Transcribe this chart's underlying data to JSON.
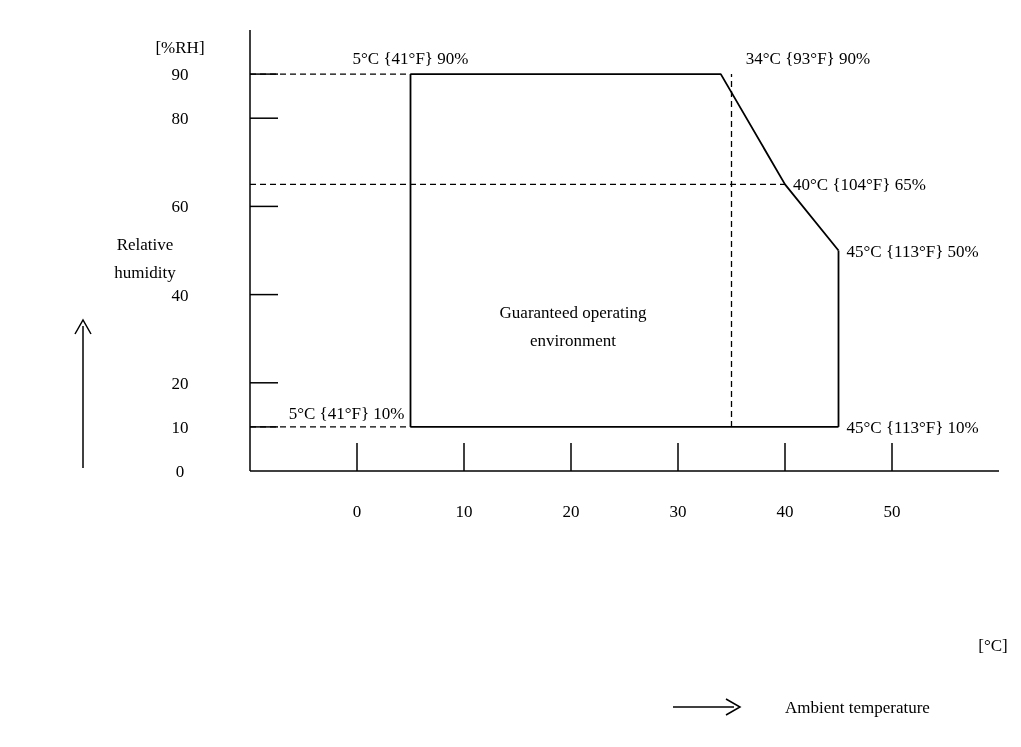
{
  "chart_data": {
    "type": "line",
    "ylabel": "Relative humidity",
    "xlim": [
      -10,
      60
    ],
    "xticks": [
      0,
      10,
      20,
      30,
      40,
      50
    ],
    "ylim": [
      0,
      100
    ],
    "yticks": [
      0,
      10,
      20,
      40,
      60,
      80,
      90
    ],
    "marker": "none",
    "line_style": "solid",
    "series": [
      {
        "color": "#000000",
        "x": [
          5,
          34,
          40,
          45
        ],
        "values": [
          90,
          90,
          65,
          50
        ]
      },
      {
        "color": "#000000",
        "x": [
          5,
          45
        ],
        "values": [
          10,
          10
        ]
      }
    ],
    "ref_lines": [
      {
        "axis": "x",
        "value": 5,
        "color": "#000000",
        "line_style": "solid"
      },
      {
        "axis": "x",
        "value": 45,
        "color": "#000000",
        "line_style": "solid"
      },
      {
        "axis": "y",
        "value": 90,
        "color": "#000000",
        "line_style": "dashed"
      },
      {
        "axis": "y",
        "value": 65,
        "color": "#000000",
        "line_style": "dashed"
      },
      {
        "axis": "y",
        "value": 10,
        "color": "#000000",
        "line_style": "dashed"
      },
      {
        "axis": "x",
        "value": 35,
        "color": "#000000",
        "line_style": "dashed"
      }
    ],
    "annotations": [
      "[%RH]",
      "[°C]",
      "Guaranteed operating environment",
      "Ambient temperature",
      {
        "text": "5°C {41°F} 90%",
        "x": 5,
        "y": 90
      },
      {
        "text": "34°C {93°F} 90%",
        "x": 34,
        "y": 90
      },
      {
        "text": "40°C {104°F} 65%",
        "x": 40,
        "y": 65
      },
      {
        "text": "45°C {113°F} 50%",
        "x": 45,
        "y": 50
      },
      {
        "text": "5°C {41°F} 10%",
        "x": 5,
        "y": 10
      },
      {
        "text": "45°C {113°F} 10%",
        "x": 45,
        "y": 10
      }
    ]
  }
}
